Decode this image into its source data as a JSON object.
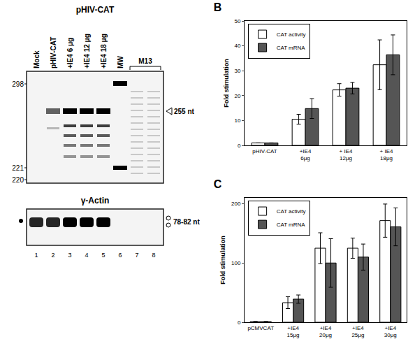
{
  "gel": {
    "title": "pHIV-CAT",
    "lane_labels": [
      "Mock",
      "pHIV-CAT",
      "+IE4 6 μg",
      "+IE4 12 μg",
      "+IE4 18 μg",
      "MW",
      null,
      null
    ],
    "group_label": "M13",
    "size_markers": [
      298,
      221,
      220
    ],
    "band_label": "255 nt",
    "control_title": "γ-Actin",
    "control_label": "78-82 nt",
    "lane_numbers": [
      1,
      2,
      3,
      4,
      5,
      6,
      7,
      8
    ]
  },
  "chart_data": [
    {
      "type": "bar",
      "title": "B",
      "y_label": "Fold stimulation",
      "categories": [
        "pHIV-CAT",
        "+IE4 6μg",
        "+ IE4 12μg",
        "+ IE4 18μg"
      ],
      "series": [
        {
          "name": "CAT activity",
          "color": "#ffffff",
          "values": [
            1,
            10.5,
            22.3,
            32.4
          ],
          "errors": [
            0,
            2,
            2.5,
            10
          ]
        },
        {
          "name": "CAT mRNA",
          "color": "#555555",
          "values": [
            1,
            14.8,
            23,
            36.4
          ],
          "errors": [
            0,
            4,
            2.3,
            8
          ]
        }
      ],
      "ylim": [
        0,
        50
      ],
      "yticks": [
        0,
        10,
        20,
        30,
        40,
        50
      ],
      "grid": false,
      "legend": "top-left"
    },
    {
      "type": "bar",
      "title": "C",
      "y_label": "Fold stimulation",
      "categories": [
        "pCMVCAT",
        "+IE4 15μg",
        "+IE4 20μg",
        "+IE4 25μg",
        "+IE4 30μg"
      ],
      "series": [
        {
          "name": "CAT activity",
          "color": "#ffffff",
          "values": [
            1,
            33,
            125,
            125,
            171.5
          ],
          "errors": [
            0,
            10,
            26,
            17,
            28
          ]
        },
        {
          "name": "CAT mRNA",
          "color": "#555555",
          "values": [
            1,
            39,
            100,
            110,
            161
          ],
          "errors": [
            0,
            7,
            41,
            22,
            32
          ]
        }
      ],
      "ylim": [
        0,
        210
      ],
      "yticks": [
        0,
        100,
        200
      ],
      "grid": false,
      "legend": "top-left"
    }
  ]
}
